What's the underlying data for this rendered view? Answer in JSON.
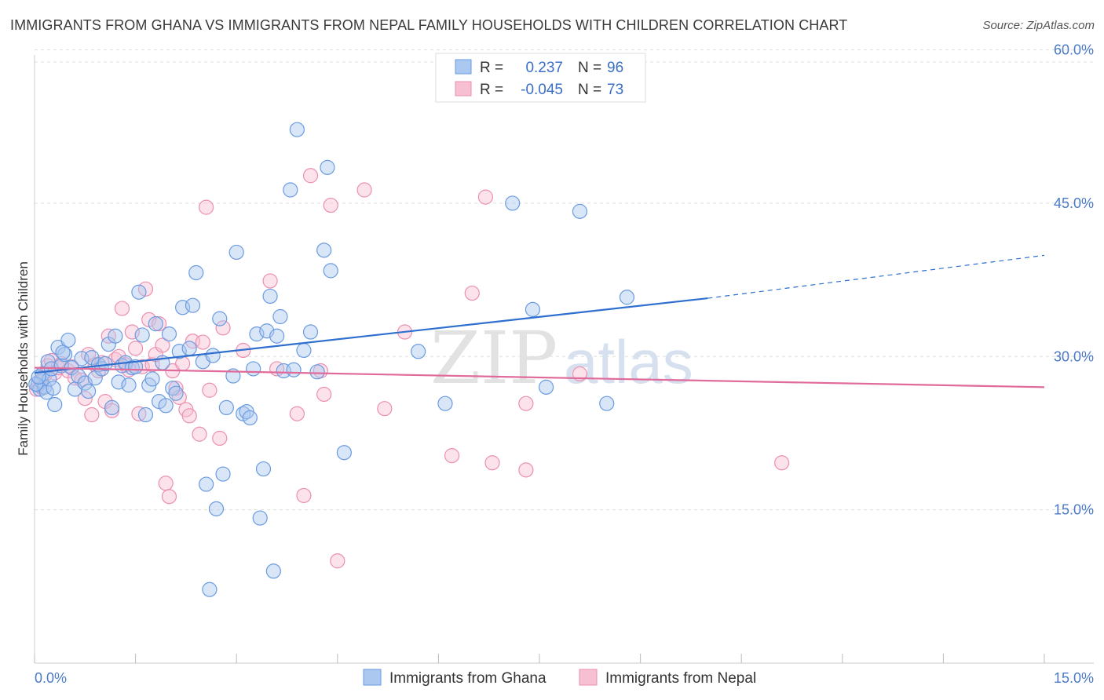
{
  "title": "IMMIGRANTS FROM GHANA VS IMMIGRANTS FROM NEPAL FAMILY HOUSEHOLDS WITH CHILDREN CORRELATION CHART",
  "source": "Source: ZipAtlas.com",
  "watermark": {
    "zip": "ZIP",
    "atlas": "atlas"
  },
  "colors": {
    "ghana_fill": "#aac8f0",
    "ghana_stroke": "#6a9be0",
    "ghana_line": "#2e6fcf",
    "nepal_fill": "#f6bfd2",
    "nepal_stroke": "#ec8fb0",
    "nepal_line": "#e06a9a",
    "tick_label": "#4a7ac8",
    "grid": "#dddddd"
  },
  "legend": {
    "rows": [
      {
        "r_label": "R =",
        "r_value": "0.237",
        "n_label": "N =",
        "n_value": "96"
      },
      {
        "r_label": "R =",
        "r_value": "-0.045",
        "n_label": "N =",
        "n_value": "73"
      }
    ]
  },
  "chart_data": {
    "type": "scatter",
    "title": "IMMIGRANTS FROM GHANA VS IMMIGRANTS FROM NEPAL FAMILY HOUSEHOLDS WITH CHILDREN CORRELATION CHART",
    "xlabel": "",
    "ylabel": "Family Households with Children",
    "xlim": [
      0,
      15
    ],
    "ylim": [
      0,
      63.5
    ],
    "x_tick_labels": [
      "0.0%",
      "15.0%"
    ],
    "y_tick_labels": [
      "15.0%",
      "30.0%",
      "45.0%",
      "60.0%"
    ],
    "y_ticks": [
      15,
      30,
      45,
      60
    ],
    "grid": true,
    "legend_position": "top-center",
    "series": [
      {
        "name": "Immigrants from Ghana",
        "stats": {
          "R": 0.237,
          "N": 96
        },
        "trend": {
          "x0": 0,
          "y0": 28.4,
          "x1": 10.0,
          "y1": 35.7,
          "dash_to_x": 15,
          "dash_to_y": 39.9
        },
        "points": [
          [
            0.05,
            27.2
          ],
          [
            0.08,
            26.8
          ],
          [
            0.1,
            27.6
          ],
          [
            0.12,
            28.3
          ],
          [
            0.15,
            27.0
          ],
          [
            0.18,
            26.5
          ],
          [
            0.2,
            29.5
          ],
          [
            0.22,
            27.8
          ],
          [
            0.25,
            28.8
          ],
          [
            0.3,
            25.3
          ],
          [
            0.35,
            30.9
          ],
          [
            0.4,
            29.1
          ],
          [
            0.45,
            30.2
          ],
          [
            0.5,
            31.6
          ],
          [
            0.55,
            28.9
          ],
          [
            0.6,
            26.8
          ],
          [
            0.65,
            28.1
          ],
          [
            0.7,
            29.8
          ],
          [
            0.75,
            27.4
          ],
          [
            0.8,
            26.6
          ],
          [
            0.85,
            29.9
          ],
          [
            0.9,
            27.9
          ],
          [
            0.95,
            29.2
          ],
          [
            1.0,
            28.8
          ],
          [
            1.05,
            29.3
          ],
          [
            1.1,
            31.2
          ],
          [
            1.15,
            25.0
          ],
          [
            1.2,
            32.0
          ],
          [
            1.25,
            27.5
          ],
          [
            1.3,
            29.1
          ],
          [
            1.35,
            29.4
          ],
          [
            1.4,
            27.2
          ],
          [
            1.45,
            28.9
          ],
          [
            1.5,
            29.0
          ],
          [
            1.55,
            36.3
          ],
          [
            1.6,
            32.1
          ],
          [
            1.65,
            24.3
          ],
          [
            1.7,
            27.2
          ],
          [
            1.75,
            27.8
          ],
          [
            1.8,
            33.2
          ],
          [
            1.85,
            25.6
          ],
          [
            1.9,
            29.4
          ],
          [
            1.95,
            25.2
          ],
          [
            2.0,
            32.2
          ],
          [
            2.05,
            26.9
          ],
          [
            2.1,
            26.4
          ],
          [
            2.15,
            30.5
          ],
          [
            2.2,
            34.8
          ],
          [
            2.3,
            30.8
          ],
          [
            2.35,
            35.0
          ],
          [
            2.4,
            38.2
          ],
          [
            2.5,
            29.5
          ],
          [
            2.55,
            17.5
          ],
          [
            2.6,
            7.2
          ],
          [
            2.65,
            30.1
          ],
          [
            2.7,
            15.1
          ],
          [
            2.75,
            33.7
          ],
          [
            2.8,
            18.5
          ],
          [
            2.85,
            25.0
          ],
          [
            2.95,
            28.1
          ],
          [
            3.0,
            40.2
          ],
          [
            3.1,
            24.4
          ],
          [
            3.15,
            24.6
          ],
          [
            3.2,
            24.0
          ],
          [
            3.25,
            28.8
          ],
          [
            3.3,
            32.2
          ],
          [
            3.35,
            14.2
          ],
          [
            3.4,
            19.0
          ],
          [
            3.45,
            32.5
          ],
          [
            3.5,
            35.9
          ],
          [
            3.55,
            9.0
          ],
          [
            3.6,
            32.0
          ],
          [
            3.65,
            33.9
          ],
          [
            3.7,
            28.6
          ],
          [
            3.8,
            46.3
          ],
          [
            3.85,
            28.7
          ],
          [
            3.9,
            52.2
          ],
          [
            4.0,
            30.6
          ],
          [
            4.1,
            32.4
          ],
          [
            4.2,
            28.5
          ],
          [
            4.3,
            40.4
          ],
          [
            4.35,
            48.5
          ],
          [
            4.4,
            38.4
          ],
          [
            4.6,
            20.6
          ],
          [
            5.7,
            30.5
          ],
          [
            6.1,
            25.4
          ],
          [
            7.1,
            45.0
          ],
          [
            7.4,
            34.6
          ],
          [
            7.6,
            27.0
          ],
          [
            8.1,
            44.2
          ],
          [
            8.5,
            25.4
          ],
          [
            8.8,
            35.8
          ],
          [
            0.02,
            27.3
          ],
          [
            0.06,
            28.0
          ],
          [
            0.28,
            26.9
          ],
          [
            0.42,
            30.4
          ]
        ]
      },
      {
        "name": "Immigrants from Nepal",
        "stats": {
          "R": -0.045,
          "N": 73
        },
        "trend": {
          "x0": 0,
          "y0": 28.9,
          "x1": 15,
          "y1": 27.0
        },
        "points": [
          [
            0.03,
            26.8
          ],
          [
            0.06,
            27.5
          ],
          [
            0.1,
            27.0
          ],
          [
            0.15,
            28.2
          ],
          [
            0.2,
            29.1
          ],
          [
            0.25,
            29.6
          ],
          [
            0.3,
            28.4
          ],
          [
            0.35,
            28.9
          ],
          [
            0.4,
            29.3
          ],
          [
            0.5,
            28.6
          ],
          [
            0.55,
            29.0
          ],
          [
            0.6,
            27.9
          ],
          [
            0.7,
            27.7
          ],
          [
            0.75,
            25.9
          ],
          [
            0.8,
            30.2
          ],
          [
            0.85,
            24.3
          ],
          [
            0.9,
            29.2
          ],
          [
            0.95,
            28.6
          ],
          [
            1.0,
            29.4
          ],
          [
            1.05,
            25.6
          ],
          [
            1.1,
            32.0
          ],
          [
            1.15,
            24.7
          ],
          [
            1.2,
            29.7
          ],
          [
            1.25,
            30.0
          ],
          [
            1.3,
            34.7
          ],
          [
            1.35,
            29.2
          ],
          [
            1.4,
            28.7
          ],
          [
            1.45,
            32.4
          ],
          [
            1.5,
            30.8
          ],
          [
            1.55,
            24.4
          ],
          [
            1.6,
            29.0
          ],
          [
            1.65,
            36.6
          ],
          [
            1.7,
            33.6
          ],
          [
            1.75,
            29.2
          ],
          [
            1.8,
            30.2
          ],
          [
            1.85,
            33.2
          ],
          [
            1.9,
            31.1
          ],
          [
            1.95,
            17.6
          ],
          [
            2.0,
            16.3
          ],
          [
            2.05,
            28.6
          ],
          [
            2.1,
            26.9
          ],
          [
            2.15,
            26.0
          ],
          [
            2.2,
            29.3
          ],
          [
            2.25,
            24.8
          ],
          [
            2.3,
            24.2
          ],
          [
            2.35,
            31.5
          ],
          [
            2.45,
            22.4
          ],
          [
            2.5,
            31.4
          ],
          [
            2.55,
            44.6
          ],
          [
            2.6,
            26.7
          ],
          [
            2.75,
            22.0
          ],
          [
            2.8,
            32.8
          ],
          [
            3.1,
            30.6
          ],
          [
            3.5,
            37.4
          ],
          [
            3.6,
            28.8
          ],
          [
            3.9,
            24.4
          ],
          [
            4.0,
            16.4
          ],
          [
            4.1,
            47.7
          ],
          [
            4.25,
            28.6
          ],
          [
            4.3,
            26.3
          ],
          [
            4.4,
            44.8
          ],
          [
            4.5,
            10.0
          ],
          [
            4.9,
            46.3
          ],
          [
            5.2,
            24.9
          ],
          [
            5.5,
            32.4
          ],
          [
            6.2,
            20.3
          ],
          [
            6.5,
            36.2
          ],
          [
            6.7,
            45.6
          ],
          [
            6.8,
            19.6
          ],
          [
            7.3,
            18.9
          ],
          [
            7.3,
            25.4
          ],
          [
            8.1,
            28.3
          ],
          [
            11.1,
            19.6
          ]
        ]
      }
    ]
  },
  "bottom_legend": [
    "Immigrants from Ghana",
    "Immigrants from Nepal"
  ]
}
